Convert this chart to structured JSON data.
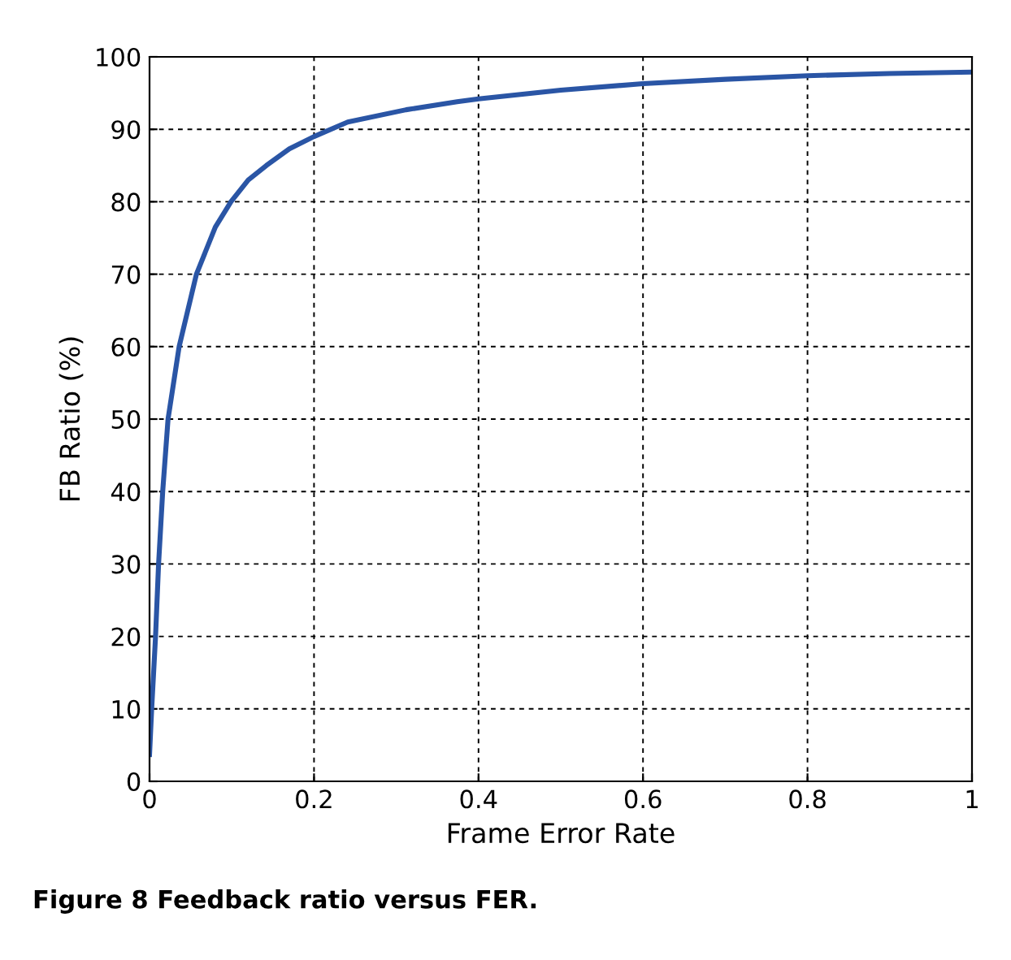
{
  "chart_data": {
    "type": "line",
    "xlabel": "Frame Error Rate",
    "ylabel": "FB Ratio (%)",
    "annotations": [
      "Figure 8 Feedback ratio versus FER."
    ],
    "xlim": [
      0,
      1
    ],
    "ylim": [
      0,
      100
    ],
    "xticks": [
      0,
      0.2,
      0.4,
      0.6,
      0.8,
      1
    ],
    "yticks": [
      0,
      10,
      20,
      30,
      40,
      50,
      60,
      70,
      80,
      90,
      100
    ],
    "grid": true,
    "marker": "none",
    "line_style": "solid",
    "series": [
      {
        "color": "#2a55a5",
        "x": [
          0,
          0.0026,
          0.0073,
          0.011,
          0.016,
          0.0225,
          0.036,
          0.057,
          0.08,
          0.099,
          0.12,
          0.142,
          0.17,
          0.2,
          0.241,
          0.312,
          0.374,
          0.4,
          0.5,
          0.6,
          0.7,
          0.8,
          0.9,
          1.0
        ],
        "values": [
          3.7,
          10,
          20,
          30,
          40,
          50,
          60,
          70,
          76.5,
          80,
          83,
          85,
          87.3,
          89,
          91,
          92.7,
          93.8,
          94.2,
          95.4,
          96.3,
          96.9,
          97.4,
          97.7,
          97.9
        ]
      }
    ]
  }
}
